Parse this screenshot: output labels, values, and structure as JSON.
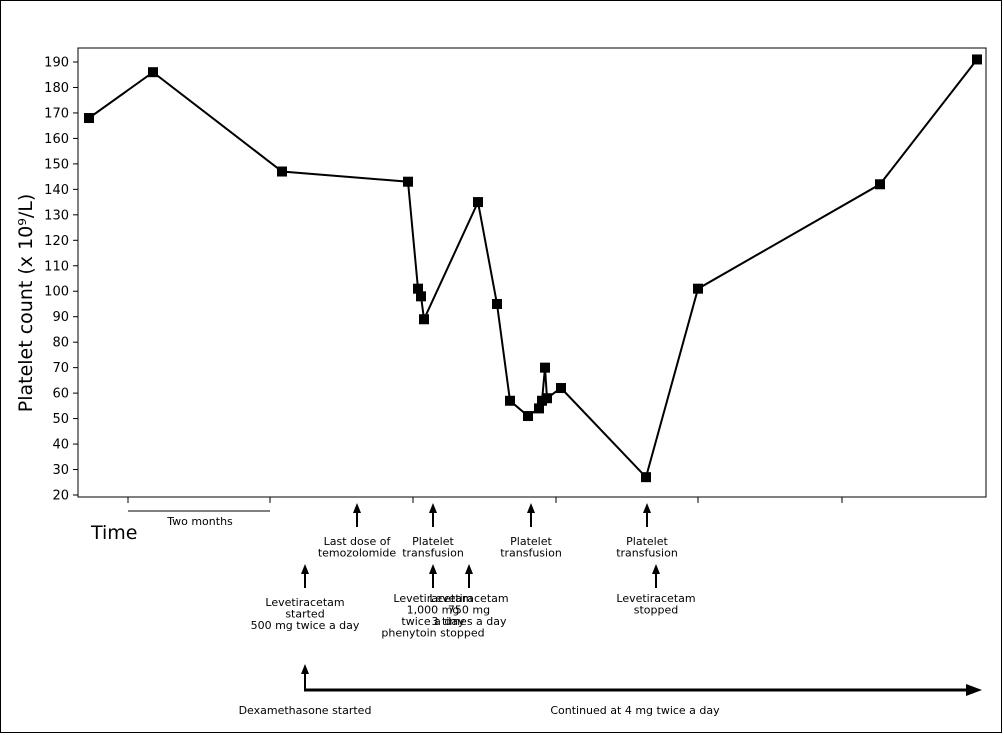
{
  "chart_data": {
    "type": "line",
    "ylabel": "Platelet count (x 10⁹/L)",
    "ylim": [
      20,
      190
    ],
    "yticks": [
      20,
      30,
      40,
      50,
      60,
      70,
      80,
      90,
      100,
      110,
      120,
      130,
      140,
      150,
      160,
      170,
      180,
      190
    ],
    "grid": false,
    "x_axis_label": "Time",
    "scale_bar_label": "Two months",
    "series": [
      {
        "values": [
          168,
          186,
          147,
          143,
          101,
          98,
          89,
          135,
          95,
          57,
          51,
          54,
          57,
          70,
          58,
          62,
          27,
          101,
          142,
          191
        ]
      }
    ],
    "annotations": [
      {
        "id": "lev-start",
        "lines": [
          "Levetiracetam",
          "started",
          "500 mg twice a day"
        ]
      },
      {
        "id": "temozolomide",
        "lines": [
          "Last dose of",
          "temozolomide"
        ]
      },
      {
        "id": "transfusion-1",
        "lines": [
          "Platelet",
          "transfusion"
        ]
      },
      {
        "id": "lev-1000",
        "lines": [
          "Levetiracetam",
          "1,000 mg",
          "twice a day",
          "phenytoin stopped"
        ]
      },
      {
        "id": "lev-750",
        "lines": [
          "Levetiracetam",
          "750 mg",
          "3 times a day"
        ]
      },
      {
        "id": "transfusion-2",
        "lines": [
          "Platelet",
          "transfusion"
        ]
      },
      {
        "id": "transfusion-3",
        "lines": [
          "Platelet",
          "transfusion"
        ]
      },
      {
        "id": "lev-stop",
        "lines": [
          "Levetiracetam",
          "stopped"
        ]
      }
    ],
    "dexamethasone": {
      "start_label": "Dexamethasone started",
      "continued_label": "Continued at 4 mg twice a day"
    }
  }
}
